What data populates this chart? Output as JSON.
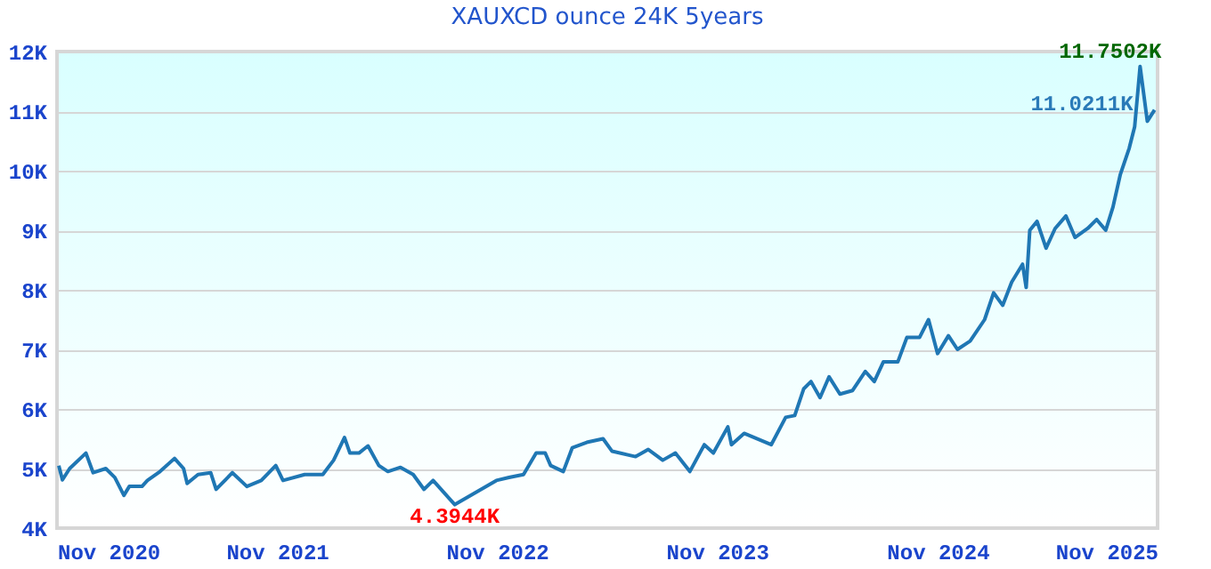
{
  "chart_data": {
    "type": "line",
    "title": "XAUXCD ounce 24K 5years",
    "x": [
      "2020-11-04",
      "2020-11-10",
      "2020-11-22",
      "2020-12-19",
      "2020-12-31",
      "2021-01-21",
      "2021-02-05",
      "2021-02-20",
      "2021-03-01",
      "2021-03-22",
      "2021-03-31",
      "2021-04-21",
      "2021-05-15",
      "2021-05-30",
      "2021-06-05",
      "2021-06-23",
      "2021-07-14",
      "2021-07-23",
      "2021-08-19",
      "2021-09-12",
      "2021-10-06",
      "2021-10-30",
      "2021-11-11",
      "2021-12-17",
      "2022-01-16",
      "2022-02-03",
      "2022-02-21",
      "2022-03-02",
      "2022-03-17",
      "2022-04-01",
      "2022-04-19",
      "2022-05-04",
      "2022-05-25",
      "2022-06-15",
      "2022-07-03",
      "2022-07-18",
      "2022-08-23",
      "2022-10-31",
      "2022-11-21",
      "2022-12-15",
      "2023-01-05",
      "2023-01-20",
      "2023-01-29",
      "2023-02-19",
      "2023-03-06",
      "2023-03-30",
      "2023-04-26",
      "2023-05-11",
      "2023-06-19",
      "2023-07-10",
      "2023-08-03",
      "2023-08-24",
      "2023-09-17",
      "2023-10-11",
      "2023-10-26",
      "2023-11-19",
      "2023-11-25",
      "2023-12-16",
      "2024-01-30",
      "2024-02-23",
      "2024-03-09",
      "2024-03-24",
      "2024-04-05",
      "2024-04-20",
      "2024-05-05",
      "2024-05-23",
      "2024-06-13",
      "2024-07-04",
      "2024-07-19",
      "2024-08-03",
      "2024-08-27",
      "2024-09-11",
      "2024-10-02",
      "2024-10-17",
      "2024-11-01",
      "2024-11-19",
      "2024-12-04",
      "2024-12-25",
      "2025-01-18",
      "2025-02-02",
      "2025-02-17",
      "2025-03-04",
      "2025-03-22",
      "2025-03-28",
      "2025-04-03",
      "2025-04-15",
      "2025-04-30",
      "2025-05-15",
      "2025-06-02",
      "2025-06-17",
      "2025-07-08",
      "2025-07-23",
      "2025-08-07",
      "2025-08-19",
      "2025-08-31",
      "2025-09-15",
      "2025-09-24",
      "2025-10-03",
      "2025-10-15",
      "2025-10-27"
    ],
    "series": [
      {
        "color": "#1f77b4",
        "values": [
          5.05,
          4.81,
          5.0,
          5.26,
          4.93,
          5.0,
          4.85,
          4.55,
          4.7,
          4.7,
          4.8,
          4.95,
          5.17,
          5.0,
          4.75,
          4.9,
          4.93,
          4.65,
          4.93,
          4.7,
          4.8,
          5.05,
          4.8,
          4.9,
          4.9,
          5.14,
          5.52,
          5.26,
          5.26,
          5.38,
          5.05,
          4.95,
          5.02,
          4.9,
          4.65,
          4.8,
          4.3944,
          4.8,
          4.85,
          4.9,
          5.26,
          5.26,
          5.05,
          4.95,
          5.35,
          5.44,
          5.5,
          5.29,
          5.2,
          5.32,
          5.14,
          5.26,
          4.95,
          5.4,
          5.26,
          5.7,
          5.4,
          5.59,
          5.4,
          5.86,
          5.89,
          6.34,
          6.46,
          6.19,
          6.54,
          6.25,
          6.31,
          6.63,
          6.46,
          6.79,
          6.79,
          7.2,
          7.2,
          7.5,
          6.93,
          7.23,
          7.0,
          7.14,
          7.5,
          7.95,
          7.74,
          8.13,
          8.43,
          8.04,
          9.0,
          9.15,
          8.7,
          9.03,
          9.24,
          8.88,
          9.03,
          9.18,
          9.0,
          9.39,
          9.93,
          10.38,
          10.74,
          11.7502,
          10.83,
          11.0211
        ]
      }
    ],
    "annotations": [
      {
        "text": "11.7502K",
        "x": "2025-10-03",
        "y": 11.7502
      },
      {
        "text": "11.0211K",
        "x": "2025-10-27",
        "y": 11.0211
      },
      {
        "text": "4.3944K",
        "x": "2022-08-23",
        "y": 4.3944
      }
    ],
    "xlim": [
      "2020-11-01",
      "2025-11-01"
    ],
    "xticks": [
      {
        "value": "2020-11-01",
        "label": "Nov 2020"
      },
      {
        "value": "2021-11-01",
        "label": "Nov 2021"
      },
      {
        "value": "2022-11-01",
        "label": "Nov 2022"
      },
      {
        "value": "2023-11-01",
        "label": "Nov 2023"
      },
      {
        "value": "2024-11-01",
        "label": "Nov 2024"
      },
      {
        "value": "2025-11-01",
        "label": "Nov 2025"
      }
    ],
    "ylim": [
      4,
      12
    ],
    "yticks": [
      {
        "value": 4,
        "label": "4K"
      },
      {
        "value": 5,
        "label": "5K"
      },
      {
        "value": 6,
        "label": "6K"
      },
      {
        "value": 7,
        "label": "7K"
      },
      {
        "value": 8,
        "label": "8K"
      },
      {
        "value": 9,
        "label": "9K"
      },
      {
        "value": 10,
        "label": "10K"
      },
      {
        "value": 11,
        "label": "11K"
      },
      {
        "value": 12,
        "label": "12K"
      }
    ],
    "grid": "y",
    "marker": "none",
    "line_style": "solid"
  }
}
